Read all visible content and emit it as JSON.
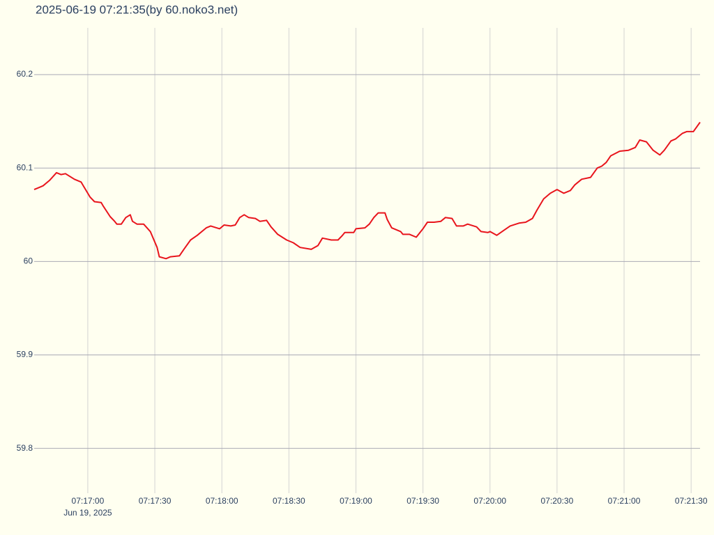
{
  "chart_data": {
    "type": "line",
    "title": "2025-06-19 07:21:35(by 60.noko3.net)",
    "x": [
      "2025-06-19 07:16:36",
      "2025-06-19 07:16:38",
      "2025-06-19 07:16:40",
      "2025-06-19 07:16:43",
      "2025-06-19 07:16:46",
      "2025-06-19 07:16:48",
      "2025-06-19 07:16:50",
      "2025-06-19 07:16:54",
      "2025-06-19 07:16:57",
      "2025-06-19 07:16:58",
      "2025-06-19 07:17:01",
      "2025-06-19 07:17:03",
      "2025-06-19 07:17:06",
      "2025-06-19 07:17:07",
      "2025-06-19 07:17:10",
      "2025-06-19 07:17:12",
      "2025-06-19 07:17:13",
      "2025-06-19 07:17:15",
      "2025-06-19 07:17:17",
      "2025-06-19 07:17:19",
      "2025-06-19 07:17:20",
      "2025-06-19 07:17:22",
      "2025-06-19 07:17:25",
      "2025-06-19 07:17:28",
      "2025-06-19 07:17:31",
      "2025-06-19 07:17:32",
      "2025-06-19 07:17:35",
      "2025-06-19 07:17:37",
      "2025-06-19 07:17:41",
      "2025-06-19 07:17:43",
      "2025-06-19 07:17:46",
      "2025-06-19 07:17:49",
      "2025-06-19 07:17:53",
      "2025-06-19 07:17:55",
      "2025-06-19 07:17:59",
      "2025-06-19 07:18:01",
      "2025-06-19 07:18:04",
      "2025-06-19 07:18:06",
      "2025-06-19 07:18:08",
      "2025-06-19 07:18:10",
      "2025-06-19 07:18:12",
      "2025-06-19 07:18:15",
      "2025-06-19 07:18:17",
      "2025-06-19 07:18:20",
      "2025-06-19 07:18:22",
      "2025-06-19 07:18:25",
      "2025-06-19 07:18:29",
      "2025-06-19 07:18:32",
      "2025-06-19 07:18:35",
      "2025-06-19 07:18:40",
      "2025-06-19 07:18:43",
      "2025-06-19 07:18:45",
      "2025-06-19 07:18:49",
      "2025-06-19 07:18:52",
      "2025-06-19 07:18:54",
      "2025-06-19 07:18:55",
      "2025-06-19 07:18:59",
      "2025-06-19 07:19:00",
      "2025-06-19 07:19:04",
      "2025-06-19 07:19:06",
      "2025-06-19 07:19:08",
      "2025-06-19 07:19:10",
      "2025-06-19 07:19:13",
      "2025-06-19 07:19:14",
      "2025-06-19 07:19:16",
      "2025-06-19 07:19:20",
      "2025-06-19 07:19:21",
      "2025-06-19 07:19:24",
      "2025-06-19 07:19:27",
      "2025-06-19 07:19:30",
      "2025-06-19 07:19:32",
      "2025-06-19 07:19:35",
      "2025-06-19 07:19:38",
      "2025-06-19 07:19:40",
      "2025-06-19 07:19:43",
      "2025-06-19 07:19:45",
      "2025-06-19 07:19:48",
      "2025-06-19 07:19:50",
      "2025-06-19 07:19:54",
      "2025-06-19 07:19:56",
      "2025-06-19 07:19:59",
      "2025-06-19 07:20:00",
      "2025-06-19 07:20:03",
      "2025-06-19 07:20:06",
      "2025-06-19 07:20:09",
      "2025-06-19 07:20:13",
      "2025-06-19 07:20:16",
      "2025-06-19 07:20:19",
      "2025-06-19 07:20:21",
      "2025-06-19 07:20:24",
      "2025-06-19 07:20:27",
      "2025-06-19 07:20:30",
      "2025-06-19 07:20:33",
      "2025-06-19 07:20:36",
      "2025-06-19 07:20:38",
      "2025-06-19 07:20:41",
      "2025-06-19 07:20:45",
      "2025-06-19 07:20:48",
      "2025-06-19 07:20:50",
      "2025-06-19 07:20:52",
      "2025-06-19 07:20:54",
      "2025-06-19 07:20:58",
      "2025-06-19 07:21:02",
      "2025-06-19 07:21:05",
      "2025-06-19 07:21:07",
      "2025-06-19 07:21:10",
      "2025-06-19 07:21:13",
      "2025-06-19 07:21:16",
      "2025-06-19 07:21:18",
      "2025-06-19 07:21:21",
      "2025-06-19 07:21:23",
      "2025-06-19 07:21:26",
      "2025-06-19 07:21:28",
      "2025-06-19 07:21:31",
      "2025-06-19 07:21:34"
    ],
    "series": [
      {
        "color": "#e8141c",
        "values": [
          60.077,
          60.079,
          60.081,
          60.087,
          60.095,
          60.093,
          60.094,
          60.088,
          60.085,
          60.081,
          60.069,
          60.064,
          60.063,
          60.059,
          60.048,
          60.043,
          60.04,
          60.04,
          60.047,
          60.05,
          60.043,
          60.04,
          60.04,
          60.032,
          60.015,
          60.005,
          60.003,
          60.005,
          60.006,
          60.013,
          60.023,
          60.028,
          60.036,
          60.038,
          60.035,
          60.039,
          60.038,
          60.039,
          60.047,
          60.05,
          60.047,
          60.046,
          60.043,
          60.044,
          60.037,
          60.029,
          60.023,
          60.02,
          60.015,
          60.013,
          60.017,
          60.025,
          60.023,
          60.023,
          60.028,
          60.031,
          60.031,
          60.035,
          60.036,
          60.04,
          60.047,
          60.052,
          60.052,
          60.045,
          60.036,
          60.032,
          60.029,
          60.029,
          60.026,
          60.035,
          60.042,
          60.042,
          60.043,
          60.047,
          60.046,
          60.038,
          60.038,
          60.04,
          60.037,
          60.032,
          60.031,
          60.032,
          60.028,
          60.033,
          60.038,
          60.041,
          60.042,
          60.046,
          60.055,
          60.067,
          60.073,
          60.077,
          60.073,
          60.076,
          60.082,
          60.088,
          60.09,
          60.1,
          60.102,
          60.106,
          60.113,
          60.118,
          60.119,
          60.122,
          60.13,
          60.128,
          60.119,
          60.114,
          60.119,
          60.129,
          60.131,
          60.137,
          60.139,
          60.139,
          60.149
        ]
      }
    ],
    "xlim": [
      "2025-06-19 07:16:36",
      "2025-06-19 07:21:34"
    ],
    "xticks": [
      {
        "value": "2025-06-19 07:17:00",
        "label": "07:17:00"
      },
      {
        "value": "2025-06-19 07:17:30",
        "label": "07:17:30"
      },
      {
        "value": "2025-06-19 07:18:00",
        "label": "07:18:00"
      },
      {
        "value": "2025-06-19 07:18:30",
        "label": "07:18:30"
      },
      {
        "value": "2025-06-19 07:19:00",
        "label": "07:19:00"
      },
      {
        "value": "2025-06-19 07:19:30",
        "label": "07:19:30"
      },
      {
        "value": "2025-06-19 07:20:00",
        "label": "07:20:00"
      },
      {
        "value": "2025-06-19 07:20:30",
        "label": "07:20:30"
      },
      {
        "value": "2025-06-19 07:21:00",
        "label": "07:21:00"
      },
      {
        "value": "2025-06-19 07:21:30",
        "label": "07:21:30"
      }
    ],
    "x_date_label": "Jun 19, 2025",
    "ylim": [
      59.752,
      60.25
    ],
    "yticks": [
      59.8,
      59.9,
      60,
      60.1,
      60.2
    ],
    "grid": true
  }
}
